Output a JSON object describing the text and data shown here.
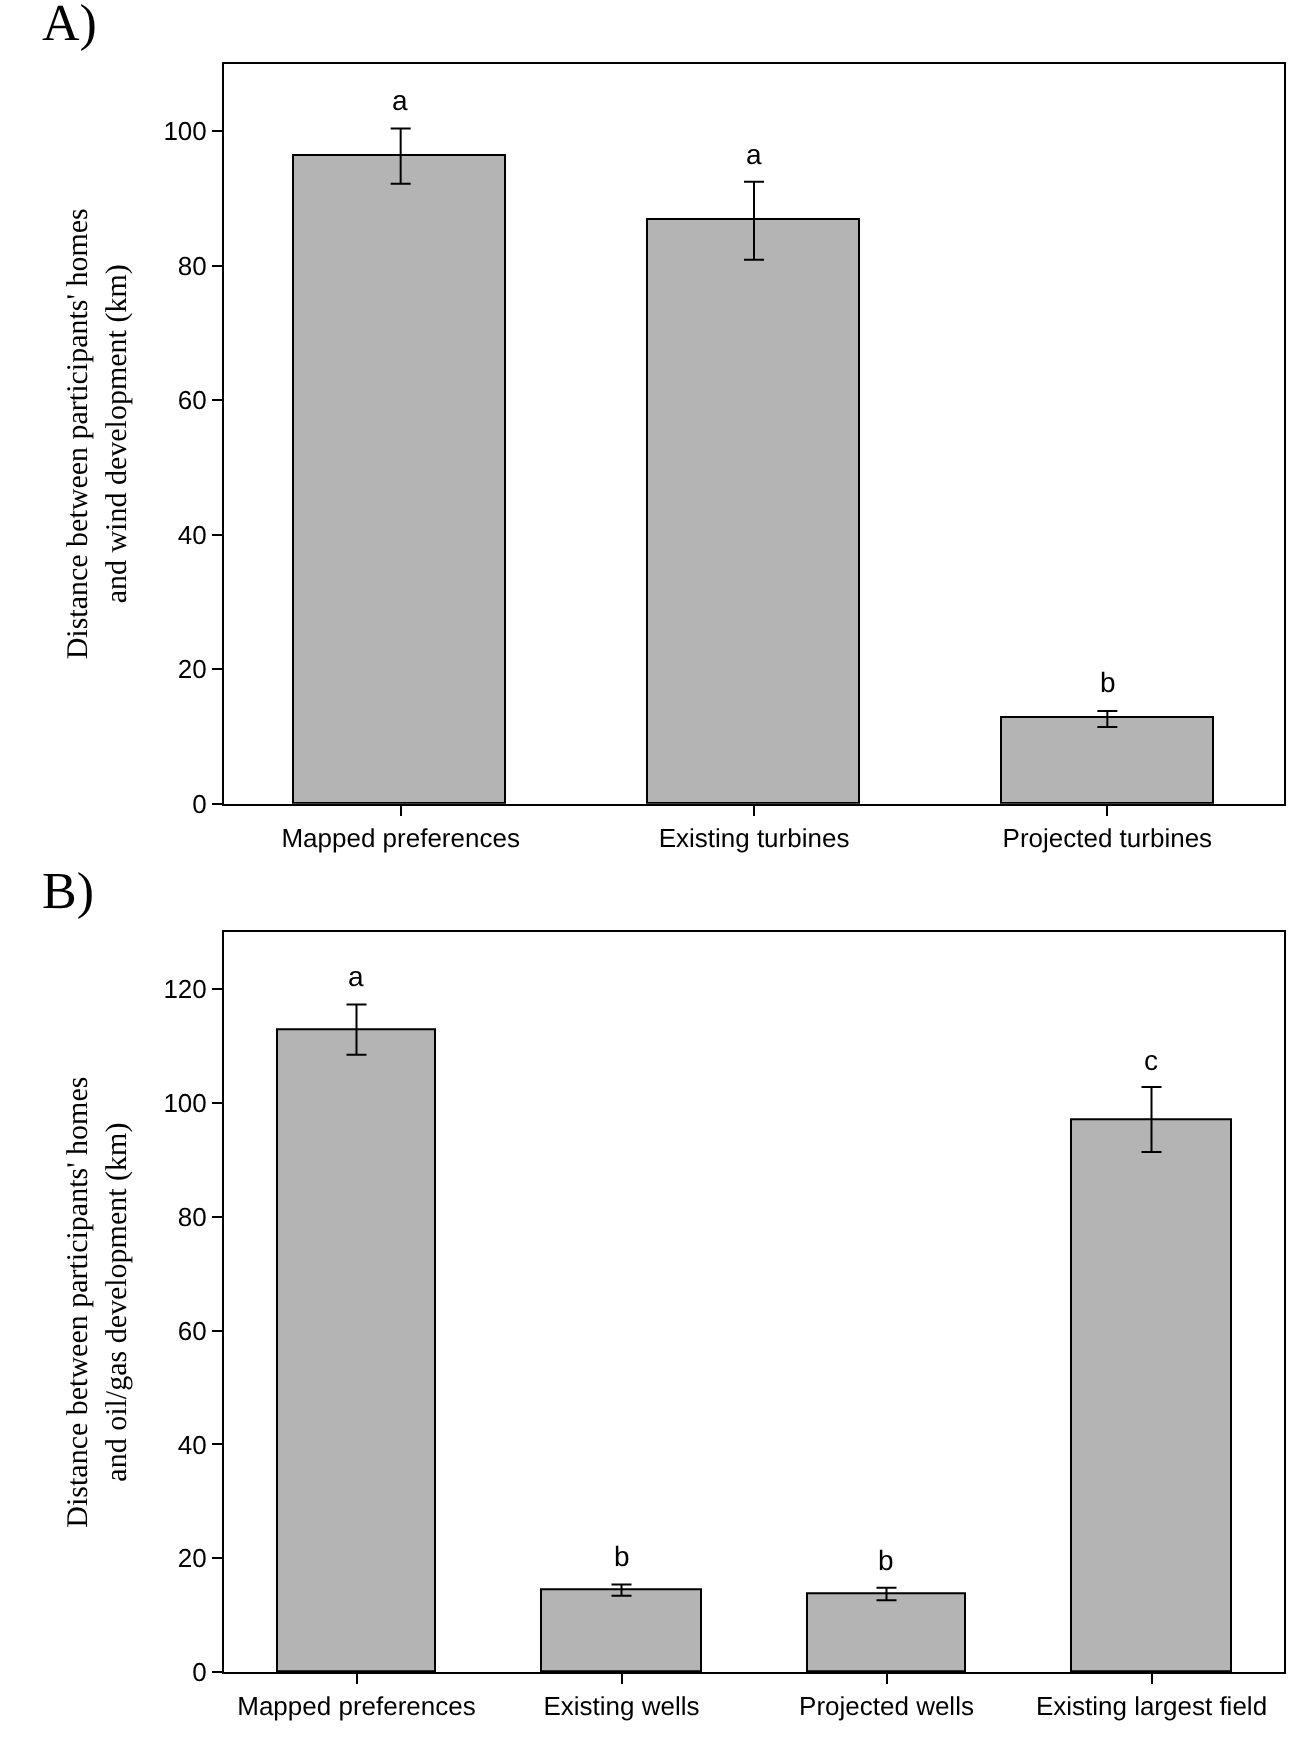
{
  "chart_data": [
    {
      "type": "bar",
      "title": "A)",
      "ylabel": "Distance between participants' homes\nand wind development (km)",
      "categories": [
        "Mapped preferences",
        "Existing turbines",
        "Projected turbines"
      ],
      "series": [
        {
          "color": "#b4b4b4",
          "values": [
            96.3,
            86.7,
            12.6
          ],
          "errors": [
            4.1,
            5.8,
            1.2
          ]
        }
      ],
      "ylim": [
        0,
        110
      ],
      "yticks": [
        0,
        20,
        40,
        60,
        80,
        100
      ],
      "annotations": [
        {
          "text": "a",
          "x": "Mapped preferences",
          "y": 100.4
        },
        {
          "text": "a",
          "x": "Existing turbines",
          "y": 92.5
        },
        {
          "text": "b",
          "x": "Projected turbines",
          "y": 13.8
        }
      ]
    },
    {
      "type": "bar",
      "title": "B)",
      "ylabel": "Distance between participants' homes\nand oil/gas development (km)",
      "categories": [
        "Mapped preferences",
        "Existing wells",
        "Projected wells",
        "Existing largest field"
      ],
      "series": [
        {
          "color": "#b4b4b4",
          "values": [
            112.9,
            14.4,
            13.7,
            97.1
          ],
          "errors": [
            4.4,
            1.0,
            1.1,
            5.7
          ]
        }
      ],
      "ylim": [
        0,
        130
      ],
      "yticks": [
        0,
        20,
        40,
        60,
        80,
        100,
        120
      ],
      "annotations": [
        {
          "text": "a",
          "x": "Mapped preferences",
          "y": 117.3
        },
        {
          "text": "b",
          "x": "Existing wells",
          "y": 15.4
        },
        {
          "text": "b",
          "x": "Projected wells",
          "y": 14.8
        },
        {
          "text": "c",
          "x": "Existing largest field",
          "y": 102.8
        }
      ]
    }
  ]
}
